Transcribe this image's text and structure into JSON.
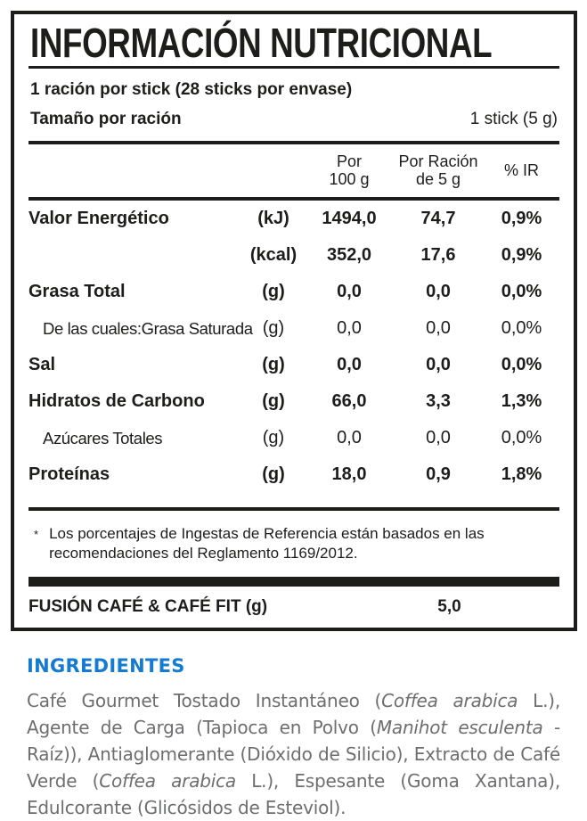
{
  "colors": {
    "text_black": "#1d1d1b",
    "accent_blue": "#147bd1",
    "body_gray": "#6d6e71"
  },
  "nutrition_label": {
    "title": "INFORMACIÓN NUTRICIONAL",
    "servings_line": "1 ración por stick (28 sticks por envase)",
    "serving_size": {
      "label": "Tamaño por ración",
      "value": "1 stick (5 g)"
    },
    "columns": {
      "per100_line1": "Por",
      "per100_line2": "100 g",
      "serving_line1": "Por Ración",
      "serving_line2": "de 5 g",
      "ir": "% IR"
    },
    "rows": [
      {
        "name": "Valor Energético",
        "unit": "(kJ)",
        "per100": "1494,0",
        "per_serving": "74,7",
        "ir": "0,9%"
      },
      {
        "name": "",
        "unit": "(kcal)",
        "per100": "352,0",
        "per_serving": "17,6",
        "ir": "0,9%"
      },
      {
        "name": "Grasa Total",
        "unit": "(g)",
        "per100": "0,0",
        "per_serving": "0,0",
        "ir": "0,0%"
      },
      {
        "name": "De las cuales:Grasa Saturada",
        "unit": "(g)",
        "per100": "0,0",
        "per_serving": "0,0",
        "ir": "0,0%"
      },
      {
        "name": "Sal",
        "unit": "(g)",
        "per100": "0,0",
        "per_serving": "0,0",
        "ir": "0,0%"
      },
      {
        "name": "Hidratos de Carbono",
        "unit": "(g)",
        "per100": "66,0",
        "per_serving": "3,3",
        "ir": "1,3%"
      },
      {
        "name": "Azúcares Totales",
        "unit": "(g)",
        "per100": "0,0",
        "per_serving": "0,0",
        "ir": "0,0%"
      },
      {
        "name": "Proteínas",
        "unit": "(g)",
        "per100": "18,0",
        "per_serving": "0,9",
        "ir": "1,8%"
      }
    ],
    "footnote": {
      "marker": "*",
      "text": "Los porcentajes de Ingestas de Referencia están basados en las recomendaciones del Reglamento 1169/2012."
    },
    "product_row": {
      "name": "FUSIÓN CAFÉ & CAFÉ FIT (g)",
      "value": "5,0"
    }
  },
  "ingredients": {
    "heading": "INGREDIENTES",
    "segments": [
      {
        "text": "Café Gourmet Tostado Instantáneo ("
      },
      {
        "text": "Coffea arabica"
      },
      {
        "text": " L.), Agente de Carga (Tapioca en Polvo ("
      },
      {
        "text": "Manihot esculenta"
      },
      {
        "text": " - Raíz)), Antiaglomerante (Dióxido de Silicio), Extracto de Café Verde ("
      },
      {
        "text": "Coffea arabica"
      },
      {
        "text": " L.), Espesante (Goma Xantana), Edulcorante (Glicósidos de Esteviol)."
      }
    ]
  }
}
